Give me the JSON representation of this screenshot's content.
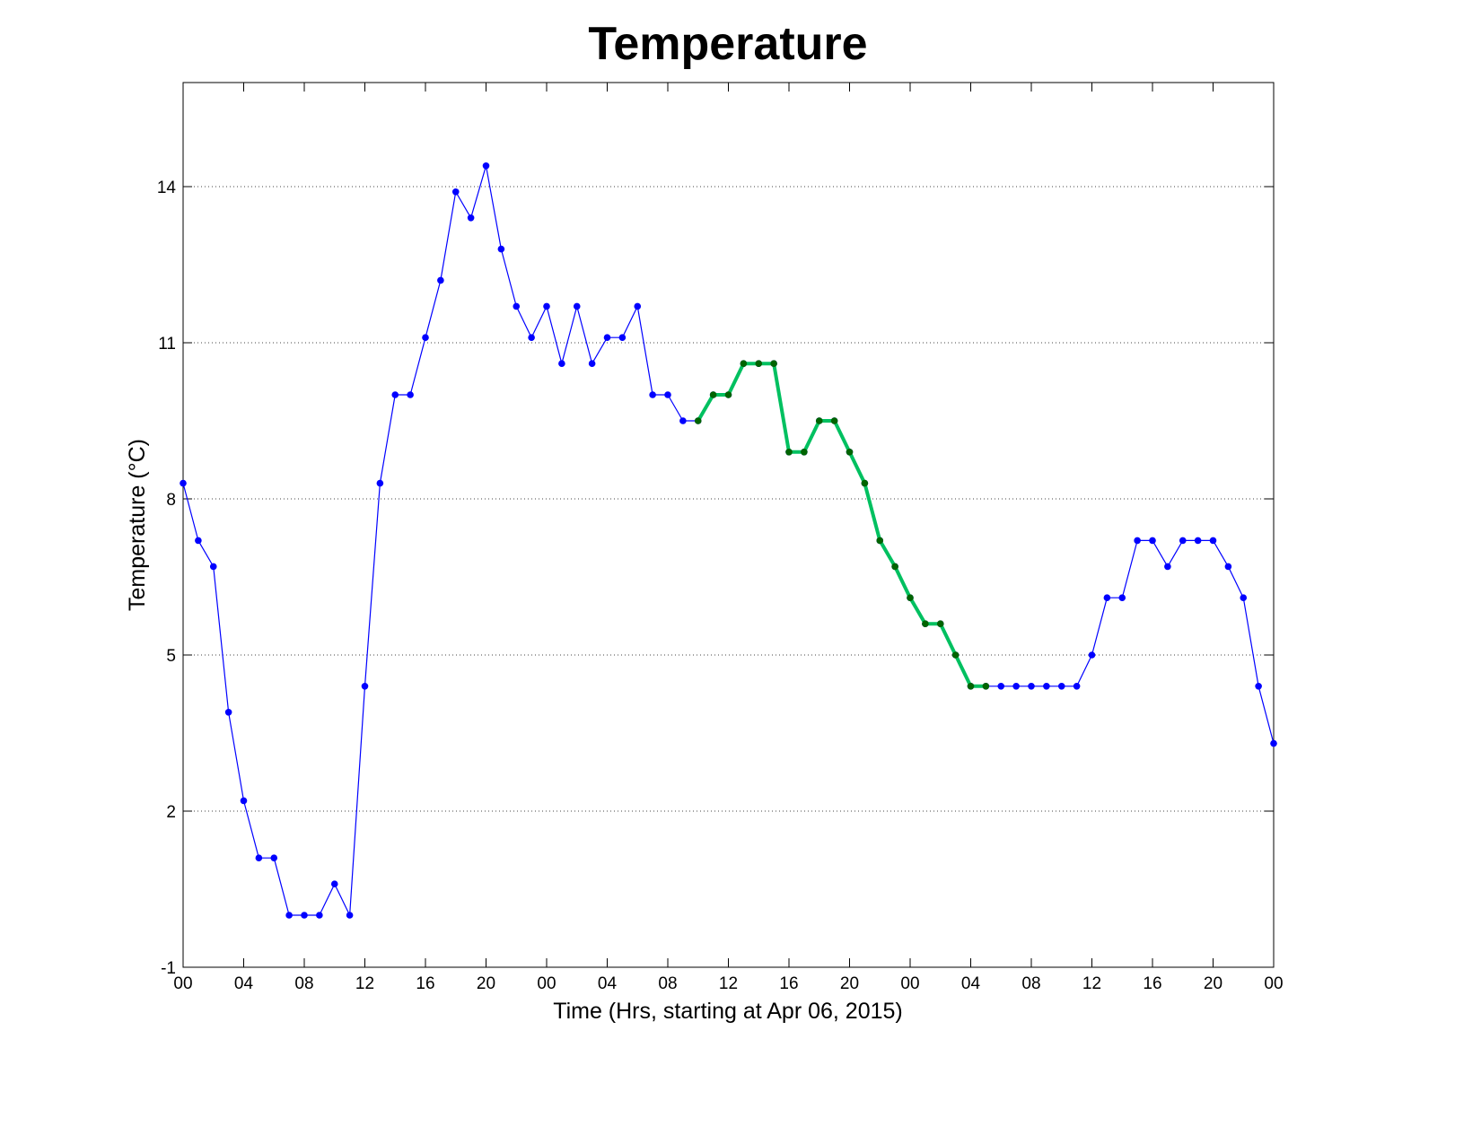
{
  "chart_data": {
    "type": "line",
    "title": "Temperature",
    "xlabel": "Time (Hrs, starting at Apr 06, 2015)",
    "ylabel": "Temperature (°C)",
    "xlim": [
      0,
      72
    ],
    "ylim": [
      -1,
      16
    ],
    "xticks": [
      {
        "value": 0,
        "label": "00"
      },
      {
        "value": 4,
        "label": "04"
      },
      {
        "value": 8,
        "label": "08"
      },
      {
        "value": 12,
        "label": "12"
      },
      {
        "value": 16,
        "label": "16"
      },
      {
        "value": 20,
        "label": "20"
      },
      {
        "value": 24,
        "label": "00"
      },
      {
        "value": 28,
        "label": "04"
      },
      {
        "value": 32,
        "label": "08"
      },
      {
        "value": 36,
        "label": "12"
      },
      {
        "value": 40,
        "label": "16"
      },
      {
        "value": 44,
        "label": "20"
      },
      {
        "value": 48,
        "label": "00"
      },
      {
        "value": 52,
        "label": "04"
      },
      {
        "value": 56,
        "label": "08"
      },
      {
        "value": 60,
        "label": "12"
      },
      {
        "value": 64,
        "label": "16"
      },
      {
        "value": 68,
        "label": "20"
      },
      {
        "value": 72,
        "label": "00"
      }
    ],
    "yticks": [
      -1,
      2,
      5,
      8,
      11,
      14
    ],
    "grid": true,
    "series": [
      {
        "color": "#0000ff",
        "marker_color": "#0000ff",
        "line_width": 1.2,
        "x": [
          0,
          1,
          2,
          3,
          4,
          5,
          6,
          7,
          8,
          9,
          10,
          11,
          12,
          13,
          14,
          15,
          16,
          17,
          18,
          19,
          20,
          21,
          22,
          23,
          24,
          25,
          26,
          27,
          28,
          29,
          30,
          31,
          32,
          33,
          34,
          35,
          36,
          37,
          38,
          39,
          40,
          41,
          42,
          43,
          44,
          45,
          46,
          47,
          48,
          49,
          50,
          51,
          52,
          53,
          54,
          55,
          56,
          57,
          58,
          59,
          60,
          61,
          62,
          63,
          64,
          65,
          66,
          67,
          68,
          69,
          70,
          71,
          72
        ],
        "values": [
          8.3,
          7.2,
          6.7,
          3.9,
          2.2,
          1.1,
          1.1,
          0,
          0,
          0,
          0.6,
          0,
          4.4,
          8.3,
          10.0,
          10.0,
          11.1,
          12.2,
          13.9,
          13.4,
          14.4,
          12.8,
          11.7,
          11.1,
          11.7,
          10.6,
          11.7,
          10.6,
          11.1,
          11.1,
          11.7,
          10.0,
          10.0,
          9.5,
          9.5,
          10.0,
          10.0,
          10.6,
          10.6,
          10.6,
          8.9,
          8.9,
          9.5,
          9.5,
          8.9,
          8.3,
          7.2,
          6.7,
          6.1,
          5.6,
          5.6,
          5.0,
          4.4,
          4.4,
          4.4,
          4.4,
          4.4,
          4.4,
          4.4,
          4.4,
          5.0,
          6.1,
          6.1,
          7.2,
          7.2,
          6.7,
          7.2,
          7.2,
          7.2,
          6.7,
          6.1,
          4.4,
          3.3
        ]
      },
      {
        "color": "#00c060",
        "marker_color": "#006400",
        "line_width": 4,
        "x": [
          34,
          35,
          36,
          37,
          38,
          39,
          40,
          41,
          42,
          43,
          44,
          45,
          46,
          47,
          48,
          49,
          50,
          51,
          52,
          53
        ],
        "values": [
          9.5,
          10.0,
          10.0,
          10.6,
          10.6,
          10.6,
          8.9,
          8.9,
          9.5,
          9.5,
          8.9,
          8.3,
          7.2,
          6.7,
          6.1,
          5.6,
          5.6,
          5.0,
          4.4,
          4.4
        ]
      }
    ]
  }
}
